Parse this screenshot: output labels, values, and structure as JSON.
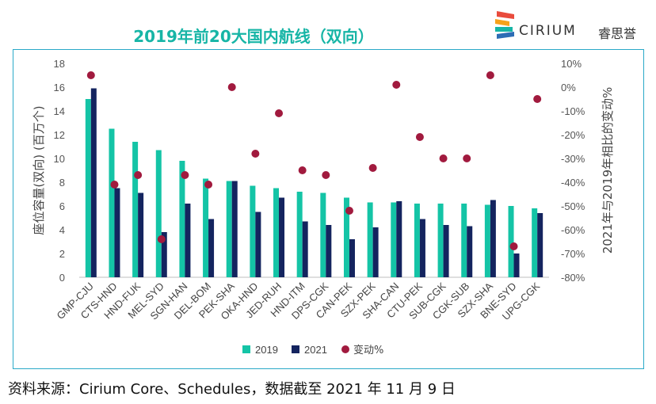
{
  "header": {
    "title": "2019年前20大国内航线（双向）"
  },
  "logo": {
    "brand": "CIRIUM",
    "brand_cn": "睿思誉",
    "colors": [
      "#e94b3c",
      "#f7a21b",
      "#17b5a6",
      "#2d6db5"
    ]
  },
  "footer": {
    "source": "资料来源：Cirium Core、Schedules，数据截至 2021 年 11 月 9 日"
  },
  "colors": {
    "s2019": "#14c4a6",
    "s2021": "#14245f",
    "change": "#a11a3e",
    "title": "#17b5a6",
    "frame": "#2aa9c8"
  },
  "chart_data": {
    "type": "bar",
    "title": "2019年前20大国内航线（双向）",
    "ylabel": "座位容量(双向) (百万个)",
    "y2label": "2021年与2019年相比的变动%",
    "ylim": [
      0,
      18
    ],
    "y2lim": [
      -80,
      10
    ],
    "yticks": [
      "0",
      "2",
      "4",
      "6",
      "8",
      "10",
      "12",
      "14",
      "16",
      "18"
    ],
    "y2ticks": [
      "-80%",
      "-70%",
      "-60%",
      "-50%",
      "-40%",
      "-30%",
      "-20%",
      "-10%",
      "0%",
      "10%"
    ],
    "categories": [
      "GMP-CJU",
      "CTS-HND",
      "HND-FUK",
      "MEL-SYD",
      "SGN-HAN",
      "DEL-BOM",
      "PEK-SHA",
      "OKA-HND",
      "JED-RUH",
      "HND-ITM",
      "DPS-CGK",
      "CAN-PEK",
      "SZX-PEK",
      "SHA-CAN",
      "CTU-PEK",
      "SUB-CGK",
      "CGK-SUB",
      "SZX-SHA",
      "BNE-SYD",
      "UPG-CGK"
    ],
    "series": [
      {
        "name": "2019",
        "axis": "left",
        "kind": "bar",
        "values": [
          15.0,
          12.5,
          11.4,
          10.7,
          9.8,
          8.3,
          8.1,
          7.7,
          7.5,
          7.2,
          7.1,
          6.7,
          6.3,
          6.3,
          6.2,
          6.2,
          6.2,
          6.1,
          6.0,
          5.8
        ]
      },
      {
        "name": "2021",
        "axis": "left",
        "kind": "bar",
        "values": [
          15.9,
          7.5,
          7.1,
          3.8,
          6.2,
          4.9,
          8.1,
          5.5,
          6.7,
          4.7,
          4.4,
          3.2,
          4.2,
          6.4,
          4.9,
          4.4,
          4.3,
          6.5,
          2.0,
          5.4
        ]
      },
      {
        "name": "变动%",
        "axis": "right",
        "kind": "scatter",
        "values": [
          5,
          -41,
          -37,
          -64,
          -37,
          -41,
          0,
          -28,
          -11,
          -35,
          -37,
          -52,
          -34,
          1,
          -21,
          -30,
          -30,
          5,
          -67,
          -5
        ]
      }
    ],
    "legend": [
      "2019",
      "2021",
      "变动%"
    ],
    "legend_position": "bottom"
  }
}
